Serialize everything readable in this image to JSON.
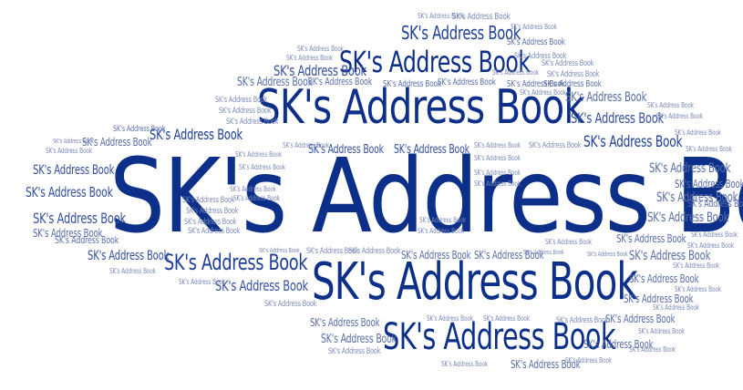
{
  "wordcloud": {
    "word": "SK's Address Book",
    "colors": {
      "darkest": "#0c2f8a",
      "dark": "#1f3f96",
      "mid": "#354f9c",
      "light": "#5a6ea8",
      "lightest": "#7a88b6",
      "background": "#ffffff"
    }
  }
}
